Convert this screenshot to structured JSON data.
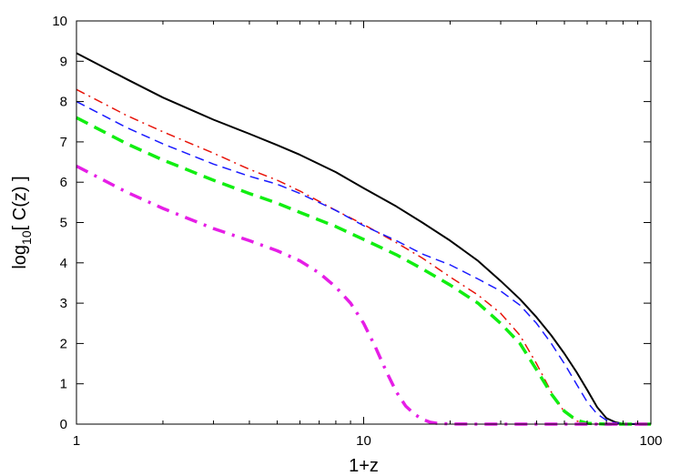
{
  "chart_data": {
    "type": "line",
    "title": "",
    "xlabel": "1+z",
    "ylabel_main": "log",
    "ylabel_sub": "10",
    "ylabel_rest": "[ C(z) ]",
    "x_scale": "log",
    "xlim": [
      1,
      100
    ],
    "ylim": [
      0,
      10
    ],
    "x_ticks": [
      1,
      10,
      100
    ],
    "x_tick_labels": [
      "1",
      "10",
      "100"
    ],
    "y_ticks": [
      0,
      1,
      2,
      3,
      4,
      5,
      6,
      7,
      8,
      9,
      10
    ],
    "y_tick_labels": [
      "0",
      "1",
      "2",
      "3",
      "4",
      "5",
      "6",
      "7",
      "8",
      "9",
      "10"
    ],
    "grid": false,
    "legend": "none",
    "series": [
      {
        "color": "#000000",
        "style": "solid",
        "width": 2,
        "points": [
          [
            1,
            9.2
          ],
          [
            1.5,
            8.55
          ],
          [
            2,
            8.1
          ],
          [
            3,
            7.55
          ],
          [
            4,
            7.2
          ],
          [
            5,
            6.92
          ],
          [
            6,
            6.68
          ],
          [
            8,
            6.25
          ],
          [
            10,
            5.85
          ],
          [
            13,
            5.4
          ],
          [
            16,
            5.0
          ],
          [
            20,
            4.55
          ],
          [
            25,
            4.05
          ],
          [
            30,
            3.55
          ],
          [
            35,
            3.1
          ],
          [
            40,
            2.65
          ],
          [
            45,
            2.2
          ],
          [
            50,
            1.75
          ],
          [
            55,
            1.3
          ],
          [
            60,
            0.85
          ],
          [
            65,
            0.42
          ],
          [
            70,
            0.15
          ],
          [
            75,
            0.05
          ],
          [
            80,
            0.01
          ],
          [
            90,
            0
          ],
          [
            100,
            0
          ]
        ]
      },
      {
        "color": "#e8140a",
        "style": "dashdot",
        "width": 1.5,
        "points": [
          [
            1,
            8.3
          ],
          [
            1.5,
            7.65
          ],
          [
            2,
            7.25
          ],
          [
            3,
            6.72
          ],
          [
            4,
            6.32
          ],
          [
            5,
            6.05
          ],
          [
            6,
            5.78
          ],
          [
            8,
            5.3
          ],
          [
            10,
            4.95
          ],
          [
            13,
            4.5
          ],
          [
            16,
            4.12
          ],
          [
            20,
            3.65
          ],
          [
            25,
            3.2
          ],
          [
            30,
            2.75
          ],
          [
            35,
            2.2
          ],
          [
            40,
            1.5
          ],
          [
            45,
            0.8
          ],
          [
            50,
            0.3
          ],
          [
            55,
            0.08
          ],
          [
            60,
            0.01
          ],
          [
            70,
            0
          ],
          [
            100,
            0
          ]
        ]
      },
      {
        "color": "#1a1aff",
        "style": "dashed",
        "width": 1.5,
        "points": [
          [
            1,
            8.0
          ],
          [
            1.5,
            7.35
          ],
          [
            2,
            6.95
          ],
          [
            3,
            6.45
          ],
          [
            4,
            6.15
          ],
          [
            5,
            5.95
          ],
          [
            6,
            5.72
          ],
          [
            8,
            5.3
          ],
          [
            10,
            4.92
          ],
          [
            13,
            4.55
          ],
          [
            16,
            4.22
          ],
          [
            20,
            3.95
          ],
          [
            25,
            3.6
          ],
          [
            30,
            3.3
          ],
          [
            35,
            2.95
          ],
          [
            40,
            2.5
          ],
          [
            45,
            2.0
          ],
          [
            50,
            1.5
          ],
          [
            55,
            1.0
          ],
          [
            60,
            0.55
          ],
          [
            65,
            0.25
          ],
          [
            70,
            0.1
          ],
          [
            75,
            0.03
          ],
          [
            80,
            0.01
          ],
          [
            90,
            0
          ],
          [
            100,
            0
          ]
        ]
      },
      {
        "color": "#11ee11",
        "style": "dashed",
        "width": 3.5,
        "points": [
          [
            1,
            7.6
          ],
          [
            1.5,
            6.95
          ],
          [
            2,
            6.55
          ],
          [
            3,
            6.05
          ],
          [
            4,
            5.72
          ],
          [
            5,
            5.48
          ],
          [
            6,
            5.25
          ],
          [
            8,
            4.9
          ],
          [
            10,
            4.58
          ],
          [
            13,
            4.2
          ],
          [
            16,
            3.85
          ],
          [
            20,
            3.45
          ],
          [
            25,
            3.0
          ],
          [
            30,
            2.5
          ],
          [
            35,
            2.0
          ],
          [
            40,
            1.35
          ],
          [
            45,
            0.75
          ],
          [
            50,
            0.32
          ],
          [
            55,
            0.1
          ],
          [
            60,
            0.02
          ],
          [
            70,
            0
          ],
          [
            100,
            0
          ]
        ]
      },
      {
        "color": "#e61ee6",
        "style": "dashdot",
        "width": 3.5,
        "points": [
          [
            1,
            6.4
          ],
          [
            1.5,
            5.75
          ],
          [
            2,
            5.35
          ],
          [
            3,
            4.85
          ],
          [
            4,
            4.55
          ],
          [
            5,
            4.3
          ],
          [
            6,
            4.05
          ],
          [
            7,
            3.75
          ],
          [
            8,
            3.4
          ],
          [
            9,
            3.0
          ],
          [
            10,
            2.5
          ],
          [
            11,
            1.9
          ],
          [
            12,
            1.3
          ],
          [
            13,
            0.8
          ],
          [
            14,
            0.45
          ],
          [
            15,
            0.25
          ],
          [
            16,
            0.12
          ],
          [
            17,
            0.05
          ],
          [
            18,
            0.02
          ],
          [
            20,
            0.005
          ],
          [
            25,
            0
          ],
          [
            100,
            0
          ]
        ]
      }
    ]
  }
}
